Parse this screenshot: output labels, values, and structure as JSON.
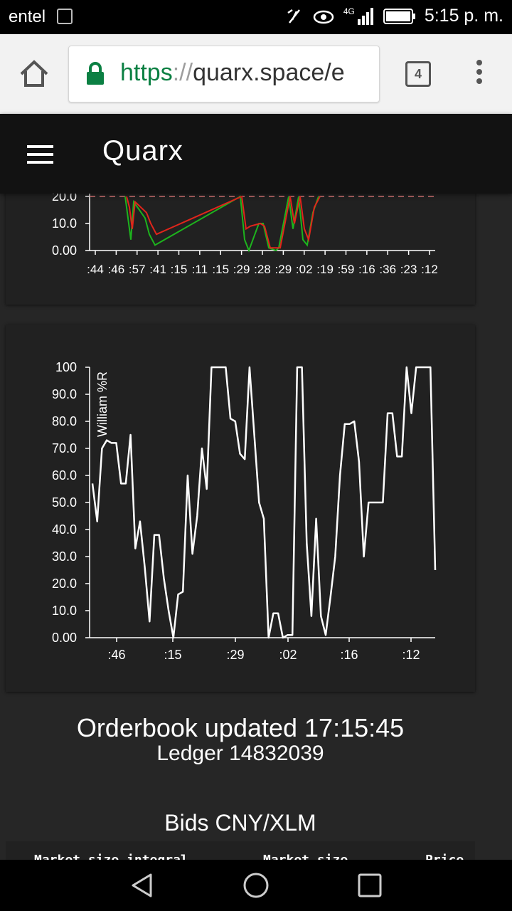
{
  "status_bar": {
    "carrier": "entel",
    "network": "4G",
    "time": "5:15 p. m."
  },
  "browser": {
    "url_scheme": "https",
    "url_sep": "://",
    "url_rest": "quarx.space/e",
    "tab_count": "4"
  },
  "app": {
    "title": "Quarx"
  },
  "chart_data": [
    {
      "type": "line",
      "series": [
        {
          "name": "",
          "color": "#1db31d",
          "values": [
            20.0,
            12.0,
            4.0,
            18.0,
            12.0,
            6.0,
            2.0,
            20.0,
            4.0,
            0.0,
            10.0,
            10.0,
            1.0,
            0.0,
            1.0,
            20.0,
            8.0,
            20.0,
            4.0,
            2.0,
            14.0,
            20.0
          ]
        },
        {
          "name": "",
          "color": "#e0251b",
          "values": [
            20.0,
            16.0,
            8.0,
            18.0,
            14.0,
            10.0,
            6.0,
            20.0,
            8.0,
            9.0,
            10.0,
            9.0,
            1.0,
            1.0,
            1.0,
            20.0,
            10.0,
            20.0,
            8.0,
            4.0,
            16.0,
            20.0
          ]
        }
      ],
      "reference_line": 20.0,
      "yticks": [
        "0.00",
        "10.0",
        "20.0"
      ],
      "xticks": [
        ":44",
        ":46",
        ":57",
        ":41",
        ":15",
        ":11",
        ":15",
        ":29",
        ":28",
        ":29",
        ":02",
        ":19",
        ":59",
        ":16",
        ":36",
        ":23",
        ":12"
      ]
    },
    {
      "type": "line",
      "ylabel": "William %R",
      "ylim": [
        0,
        100
      ],
      "yticks": [
        "0.00",
        "10.0",
        "20.0",
        "30.0",
        "40.0",
        "50.0",
        "60.0",
        "70.0",
        "80.0",
        "90.0",
        "100"
      ],
      "xticks": [
        ":46",
        ":15",
        ":29",
        ":02",
        ":16",
        ":12"
      ],
      "series": [
        {
          "name": "William %R",
          "color": "#ffffff",
          "values": [
            57,
            43,
            70,
            73,
            72,
            72,
            57,
            57,
            75,
            33,
            43,
            26,
            6,
            38,
            38,
            22,
            10,
            0,
            16,
            17,
            60,
            31,
            45,
            70,
            55,
            100,
            100,
            100,
            100,
            81,
            80,
            68,
            66,
            100,
            75,
            50,
            44,
            0,
            9,
            9,
            0,
            1,
            1,
            100,
            100,
            35,
            8,
            44,
            8,
            1,
            15,
            30,
            60,
            79,
            79,
            80,
            65,
            30,
            50,
            50,
            50,
            50,
            83,
            83,
            67,
            67,
            100,
            83,
            100,
            100,
            100,
            100,
            25
          ]
        }
      ]
    }
  ],
  "orderbook": {
    "updated_label": "Orderbook updated 17:15:45",
    "ledger_label": "Ledger 14832039"
  },
  "bids": {
    "title": "Bids CNY/XLM",
    "columns": [
      "Market size integral",
      "Market size",
      "Price"
    ]
  }
}
